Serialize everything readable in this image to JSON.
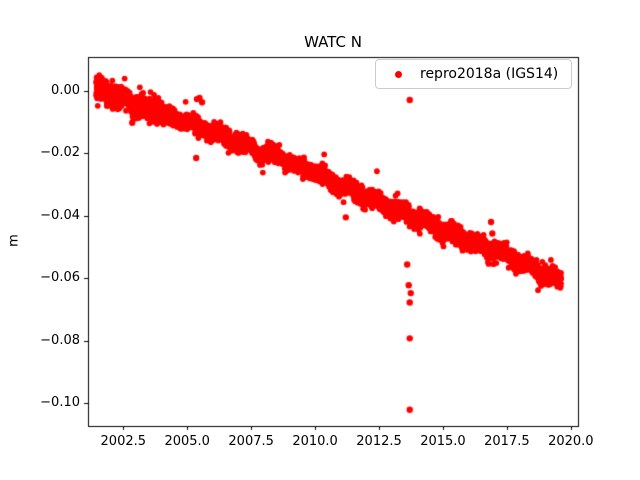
{
  "chart_data": {
    "type": "scatter",
    "title": "WATC N",
    "xlabel": "",
    "ylabel": "m",
    "legend_position": "upper right",
    "grid": false,
    "xlim": [
      2001.12,
      2020.28
    ],
    "ylim": [
      -0.1074,
      0.0109
    ],
    "x_ticks": [
      2002.5,
      2005.0,
      2007.5,
      2010.0,
      2012.5,
      2015.0,
      2017.5,
      2020.0
    ],
    "x_tick_labels": [
      "2002.5",
      "2005.0",
      "2007.5",
      "2010.0",
      "2012.5",
      "2015.0",
      "2017.5",
      "2020.0"
    ],
    "y_ticks": [
      0.0,
      -0.02,
      -0.04,
      -0.06,
      -0.08,
      -0.1
    ],
    "y_tick_labels": [
      "0.00",
      "−0.02",
      "−0.04",
      "−0.06",
      "−0.08",
      "−0.10"
    ],
    "legend": [
      {
        "label": "repro2018a (IGS14)",
        "color": "#ff0000",
        "marker": "dot"
      }
    ],
    "series": [
      {
        "name": "repro2018a (IGS14)",
        "color": "#ff0000",
        "marker_radius_px": 2.9,
        "x_start": 2001.44,
        "x_end": 2019.62,
        "points_per_year": 300,
        "noise_sd": 0.00125,
        "early_noise_factor": 1.35,
        "seasonal_amplitude": 0.0009,
        "trend": [
          [
            2001.44,
            0.0006
          ],
          [
            2001.7,
            0.001
          ],
          [
            2002.0,
            -0.001
          ],
          [
            2002.3,
            -0.0035
          ],
          [
            2002.6,
            -0.002
          ],
          [
            2003.0,
            -0.0045
          ],
          [
            2003.4,
            -0.006
          ],
          [
            2003.8,
            -0.0055
          ],
          [
            2004.2,
            -0.008
          ],
          [
            2004.6,
            -0.0095
          ],
          [
            2005.0,
            -0.009
          ],
          [
            2005.4,
            -0.012
          ],
          [
            2005.8,
            -0.0125
          ],
          [
            2006.2,
            -0.0135
          ],
          [
            2006.6,
            -0.0155
          ],
          [
            2007.0,
            -0.016
          ],
          [
            2007.4,
            -0.0175
          ],
          [
            2007.8,
            -0.02
          ],
          [
            2008.2,
            -0.0195
          ],
          [
            2008.6,
            -0.021
          ],
          [
            2009.0,
            -0.0225
          ],
          [
            2009.4,
            -0.0245
          ],
          [
            2009.8,
            -0.025
          ],
          [
            2010.2,
            -0.027
          ],
          [
            2010.6,
            -0.0285
          ],
          [
            2011.0,
            -0.03
          ],
          [
            2011.4,
            -0.0315
          ],
          [
            2011.8,
            -0.033
          ],
          [
            2012.2,
            -0.0345
          ],
          [
            2012.6,
            -0.036
          ],
          [
            2013.0,
            -0.0375
          ],
          [
            2013.4,
            -0.0385
          ],
          [
            2013.8,
            -0.04
          ],
          [
            2014.2,
            -0.0415
          ],
          [
            2014.6,
            -0.043
          ],
          [
            2015.0,
            -0.0445
          ],
          [
            2015.4,
            -0.046
          ],
          [
            2015.8,
            -0.0475
          ],
          [
            2016.2,
            -0.0485
          ],
          [
            2016.6,
            -0.05
          ],
          [
            2017.0,
            -0.051
          ],
          [
            2017.4,
            -0.0525
          ],
          [
            2017.8,
            -0.054
          ],
          [
            2018.2,
            -0.0555
          ],
          [
            2018.6,
            -0.057
          ],
          [
            2019.0,
            -0.0585
          ],
          [
            2019.3,
            -0.06
          ],
          [
            2019.62,
            -0.0605
          ]
        ],
        "outliers": [
          [
            2002.85,
            -0.0102
          ],
          [
            2005.35,
            -0.0215
          ],
          [
            2005.38,
            -0.0026
          ],
          [
            2005.48,
            -0.0022
          ],
          [
            2005.58,
            -0.0036
          ],
          [
            2011.2,
            -0.0405
          ],
          [
            2013.7,
            -0.0029
          ],
          [
            2013.6,
            -0.0556
          ],
          [
            2013.66,
            -0.0623
          ],
          [
            2013.74,
            -0.0648
          ],
          [
            2013.7,
            -0.0678
          ],
          [
            2013.7,
            -0.0793
          ],
          [
            2013.7,
            -0.1022
          ],
          [
            2016.88,
            -0.042
          ],
          [
            2016.93,
            -0.0457
          ]
        ]
      }
    ]
  }
}
